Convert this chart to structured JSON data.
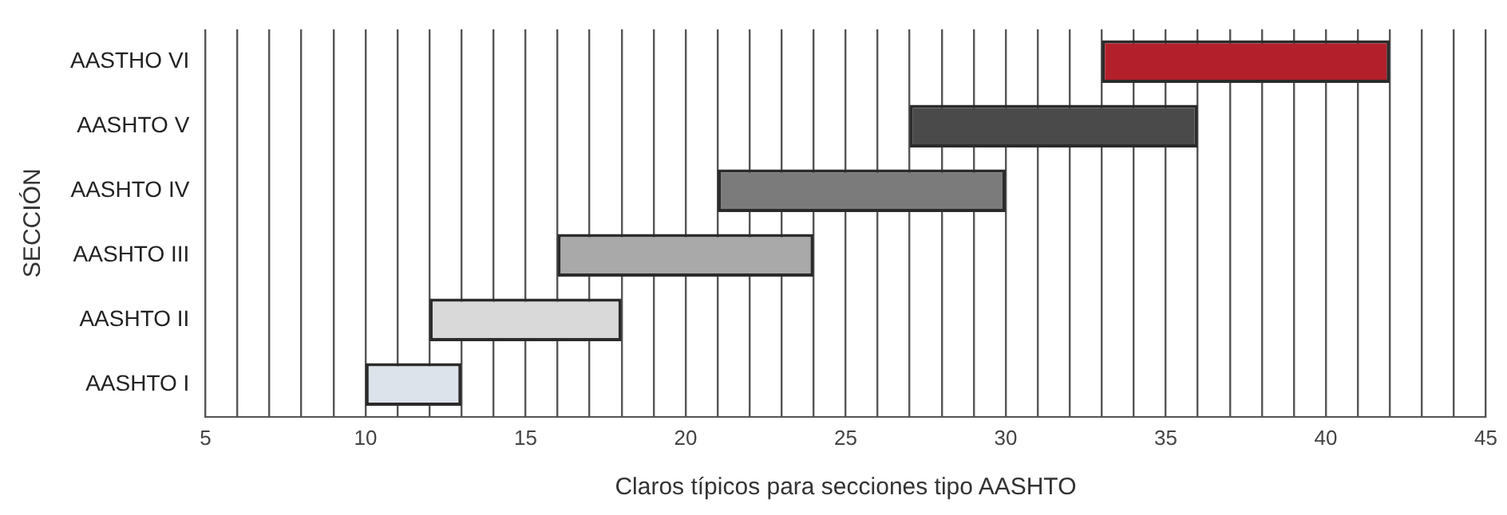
{
  "chart_data": {
    "type": "bar",
    "orientation": "horizontal",
    "xlabel": "Claros típicos para secciones tipo AASHTO",
    "ylabel": "SECCIÓN",
    "categories": [
      "AASTHO VI",
      "AASHTO V",
      "AASHTO IV",
      "AASHTO III",
      "AASHTO II",
      "AASHTO I"
    ],
    "base": [
      33,
      27,
      21,
      16,
      12,
      10
    ],
    "values": [
      9,
      9,
      9,
      8,
      6,
      3
    ],
    "colors": [
      "#b3202b",
      "#4a4a4a",
      "#7b7b7b",
      "#a9a9a9",
      "#d9d9d9",
      "#dce3ea"
    ],
    "xlim": [
      5,
      45
    ],
    "xticks": [
      5,
      {
        "value": 6,
        "label": null
      },
      {
        "value": 7,
        "label": null
      },
      {
        "value": 8,
        "label": null
      },
      {
        "value": 9,
        "label": null
      },
      10,
      {
        "value": 11,
        "label": null
      },
      {
        "value": 12,
        "label": null
      },
      {
        "value": 13,
        "label": null
      },
      {
        "value": 14,
        "label": null
      },
      15,
      {
        "value": 16,
        "label": null
      },
      {
        "value": 17,
        "label": null
      },
      {
        "value": 18,
        "label": null
      },
      {
        "value": 19,
        "label": null
      },
      20,
      {
        "value": 21,
        "label": null
      },
      {
        "value": 22,
        "label": null
      },
      {
        "value": 23,
        "label": null
      },
      {
        "value": 24,
        "label": null
      },
      25,
      {
        "value": 26,
        "label": null
      },
      {
        "value": 27,
        "label": null
      },
      {
        "value": 28,
        "label": null
      },
      {
        "value": 29,
        "label": null
      },
      30,
      {
        "value": 31,
        "label": null
      },
      {
        "value": 32,
        "label": null
      },
      {
        "value": 33,
        "label": null
      },
      {
        "value": 34,
        "label": null
      },
      35,
      {
        "value": 36,
        "label": null
      },
      {
        "value": 37,
        "label": null
      },
      {
        "value": 38,
        "label": null
      },
      {
        "value": 39,
        "label": null
      },
      40,
      {
        "value": 41,
        "label": null
      },
      {
        "value": 42,
        "label": null
      },
      {
        "value": 43,
        "label": null
      },
      {
        "value": 44,
        "label": null
      },
      45
    ],
    "grid": "x",
    "legend": false
  }
}
